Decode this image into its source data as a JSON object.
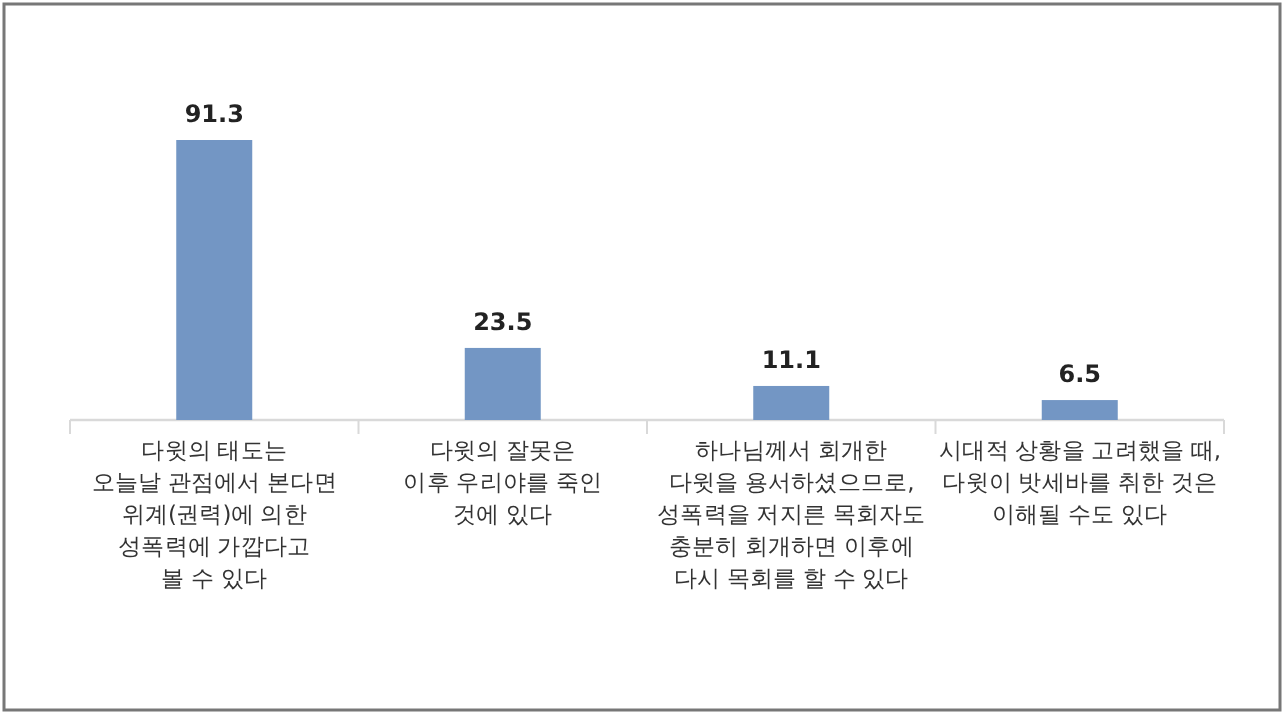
{
  "chart_data": {
    "type": "bar",
    "categories": [
      "다윗의 태도는\n오늘날 관점에서 본다면\n위계(권력)에 의한\n성폭력에 가깝다고\n볼 수 있다",
      "다윗의 잘못은\n이후 우리야를 죽인\n것에 있다",
      "하나님께서 회개한\n다윗을 용서하셨으므로,\n성폭력을 저지른 목회자도\n충분히 회개하면 이후에\n다시 목회를 할 수 있다",
      "시대적 상황을 고려했을 때,\n다윗이 밧세바를 취한 것은\n이해될 수도 있다"
    ],
    "values": [
      91.3,
      23.5,
      11.1,
      6.5
    ],
    "color": "#7396c4",
    "data_labels": true
  }
}
